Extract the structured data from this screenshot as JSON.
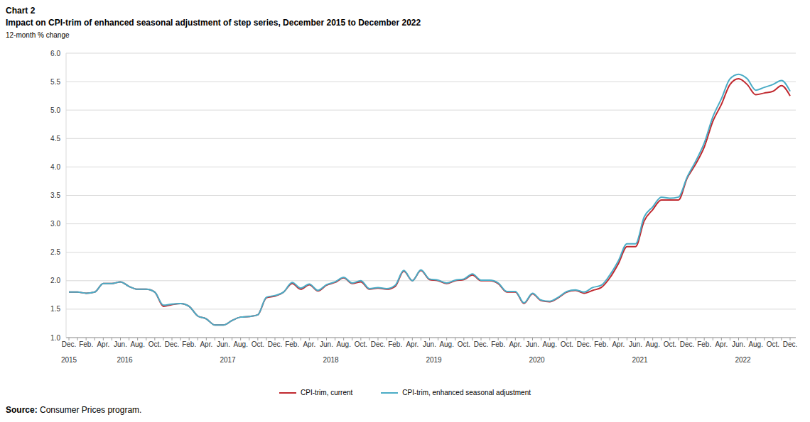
{
  "chart_data": {
    "type": "line",
    "label": "Chart 2",
    "title": "Impact on CPI-trim of enhanced seasonal adjustment of step series, December 2015 to December 2022",
    "subtitle": "12-month % change",
    "source_label": "Source:",
    "source": "Consumer Prices program.",
    "categories": [
      "Dec.",
      null,
      "Feb.",
      null,
      "Apr.",
      null,
      "Jun.",
      null,
      "Aug.",
      null,
      "Oct.",
      null,
      "Dec.",
      null,
      "Feb.",
      null,
      "Apr.",
      null,
      "Jun.",
      null,
      "Aug.",
      null,
      "Oct.",
      null,
      "Dec.",
      null,
      "Feb.",
      null,
      "Apr.",
      null,
      "Jun.",
      null,
      "Aug.",
      null,
      "Oct.",
      null,
      "Dec.",
      null,
      "Feb.",
      null,
      "Apr.",
      null,
      "Jun.",
      null,
      "Aug.",
      null,
      "Oct.",
      null,
      "Dec.",
      null,
      "Feb.",
      null,
      "Apr.",
      null,
      "Jun.",
      null,
      "Aug.",
      null,
      "Oct.",
      null,
      "Dec.",
      null,
      "Feb.",
      null,
      "Apr.",
      null,
      "Jun.",
      null,
      "Aug.",
      null,
      "Oct.",
      null,
      "Dec.",
      null,
      "Feb.",
      null,
      "Apr.",
      null,
      "Jun.",
      null,
      "Aug.",
      null,
      "Oct.",
      null,
      "Dec."
    ],
    "years": [
      "2015",
      "2016",
      "2017",
      "2018",
      "2019",
      "2020",
      "2021",
      "2022"
    ],
    "series": [
      {
        "name": "CPI-trim, current",
        "color": "#c0282e",
        "values": [
          1.8,
          1.8,
          1.78,
          1.8,
          1.95,
          1.95,
          1.98,
          1.9,
          1.85,
          1.85,
          1.8,
          1.55,
          1.58,
          1.6,
          1.55,
          1.38,
          1.33,
          1.22,
          1.22,
          1.3,
          1.36,
          1.37,
          1.4,
          1.7,
          1.73,
          1.8,
          1.95,
          1.85,
          1.93,
          1.82,
          1.92,
          1.97,
          2.05,
          1.95,
          1.98,
          1.85,
          1.87,
          1.85,
          1.9,
          2.17,
          2.0,
          2.18,
          2.02,
          2.0,
          1.95,
          2.0,
          2.02,
          2.1,
          2.0,
          2.0,
          1.95,
          1.8,
          1.8,
          1.6,
          1.77,
          1.65,
          1.63,
          1.7,
          1.8,
          1.83,
          1.78,
          1.83,
          1.88,
          2.05,
          2.3,
          2.6,
          2.6,
          3.05,
          3.25,
          3.42,
          3.42,
          3.42,
          3.8,
          4.05,
          4.35,
          4.8,
          5.1,
          5.45,
          5.55,
          5.45,
          5.27,
          5.3,
          5.33,
          5.43,
          5.25
        ]
      },
      {
        "name": "CPI-trim, enhanced seasonal adjustment",
        "color": "#4aacc6",
        "values": [
          1.8,
          1.8,
          1.78,
          1.8,
          1.95,
          1.95,
          1.98,
          1.9,
          1.85,
          1.85,
          1.8,
          1.57,
          1.59,
          1.6,
          1.55,
          1.38,
          1.33,
          1.22,
          1.22,
          1.3,
          1.36,
          1.37,
          1.4,
          1.71,
          1.74,
          1.8,
          1.97,
          1.87,
          1.94,
          1.83,
          1.93,
          1.98,
          2.06,
          1.96,
          2.0,
          1.86,
          1.88,
          1.86,
          1.92,
          2.18,
          2.0,
          2.19,
          2.03,
          2.01,
          1.96,
          2.01,
          2.03,
          2.12,
          2.01,
          2.01,
          1.96,
          1.81,
          1.81,
          1.61,
          1.78,
          1.66,
          1.64,
          1.71,
          1.81,
          1.84,
          1.8,
          1.88,
          1.92,
          2.1,
          2.35,
          2.65,
          2.65,
          3.12,
          3.3,
          3.47,
          3.45,
          3.47,
          3.82,
          4.1,
          4.42,
          4.88,
          5.2,
          5.55,
          5.63,
          5.55,
          5.35,
          5.4,
          5.45,
          5.52,
          5.33
        ]
      }
    ],
    "ylim": [
      1,
      6
    ],
    "yticks": [
      {
        "value": 1,
        "label": "1.0"
      },
      1.5,
      {
        "value": 2,
        "label": "2.0"
      },
      2.5,
      {
        "value": 3,
        "label": "3.0"
      },
      3.5,
      {
        "value": 4,
        "label": "4.0"
      },
      4.5,
      {
        "value": 5,
        "label": "5.0"
      },
      5.5,
      {
        "value": 6,
        "label": "6.0"
      }
    ],
    "grid": true,
    "legend": "bottom"
  }
}
